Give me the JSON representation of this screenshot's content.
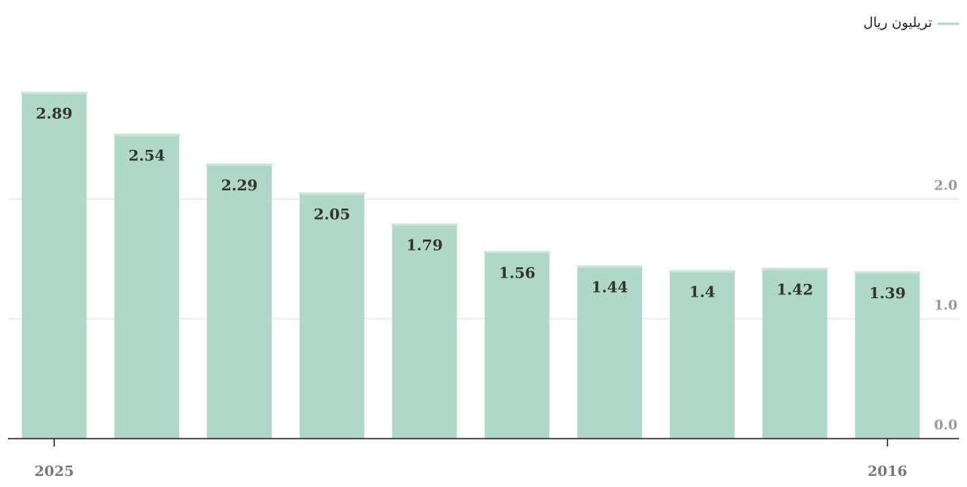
{
  "chart_data": {
    "type": "bar",
    "legend_label": "تریلیون ریال",
    "categories": [
      "2025",
      null,
      null,
      null,
      null,
      null,
      null,
      null,
      null,
      "2016"
    ],
    "values": [
      2.89,
      2.54,
      2.29,
      2.05,
      1.79,
      1.56,
      1.44,
      1.4,
      1.42,
      1.39
    ],
    "color": "#b0d8c8",
    "ylim": [
      0,
      3
    ],
    "yticks": [
      {
        "value": 0,
        "label": "0.0"
      },
      {
        "value": 1,
        "label": "1.0"
      },
      {
        "value": 2,
        "label": "2.0"
      }
    ],
    "grid": true,
    "legend_position": "top-right"
  }
}
